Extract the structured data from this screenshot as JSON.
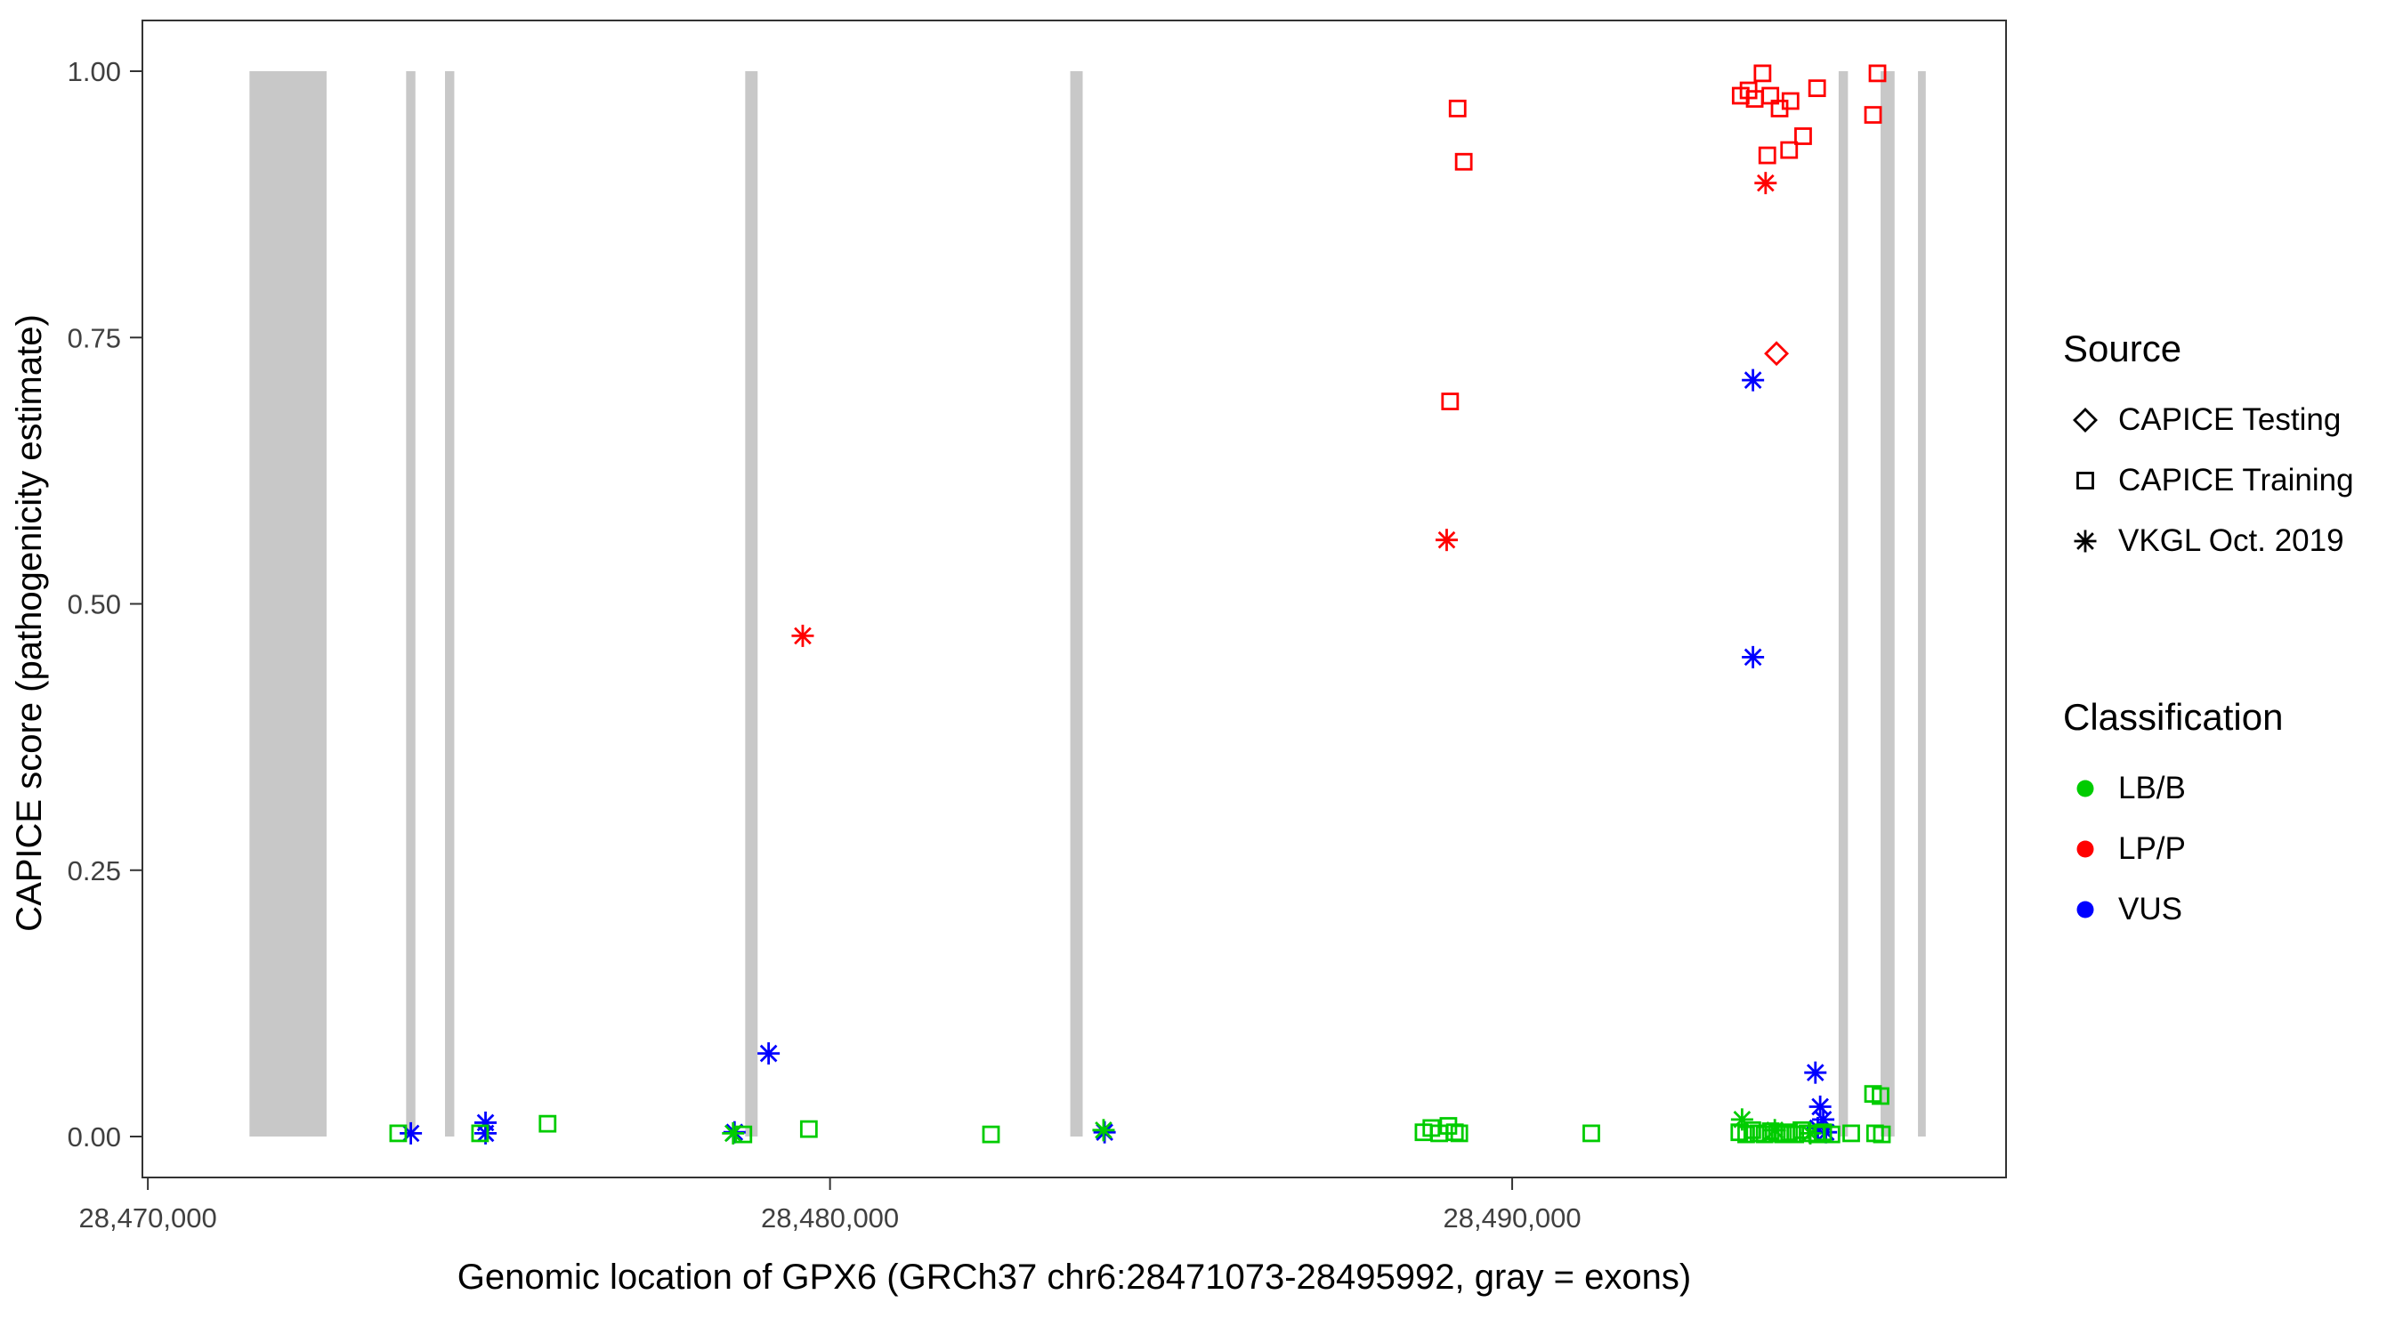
{
  "axes": {
    "y_label": "CAPICE score (pathogenicity estimate)",
    "x_label": "Genomic location of GPX6 (GRCh37 chr6:28471073-28495992, gray = exons)",
    "x_ticks": [
      "28,470,000",
      "28,480,000",
      "28,490,000"
    ],
    "y_ticks": [
      "0.00",
      "0.25",
      "0.50",
      "0.75",
      "1.00"
    ]
  },
  "legend": {
    "source_title": "Source",
    "source_items": [
      {
        "label": "CAPICE Testing",
        "symbol": "diamond"
      },
      {
        "label": "CAPICE Training",
        "symbol": "square"
      },
      {
        "label": "VKGL Oct. 2019",
        "symbol": "asterisk"
      }
    ],
    "classification_title": "Classification",
    "classification_items": [
      {
        "label": "LB/B",
        "color": "#00CC00"
      },
      {
        "label": "LP/P",
        "color": "#FF0000"
      },
      {
        "label": "VUS",
        "color": "#0000FF"
      }
    ]
  },
  "chart_data": {
    "type": "scatter",
    "title": "",
    "xlabel": "Genomic location of GPX6 (GRCh37 chr6:28471073-28495992, gray = exons)",
    "ylabel": "CAPICE score (pathogenicity estimate)",
    "x_domain": [
      28469920,
      28497240
    ],
    "y_domain": [
      0,
      1
    ],
    "x_tick_values": [
      28470000,
      28480000,
      28490000
    ],
    "y_tick_values": [
      0,
      0.25,
      0.5,
      0.75,
      1
    ],
    "grid": "off",
    "legend_position": "right",
    "exon_color": "#C8C8C8",
    "exons": [
      [
        28471490,
        28472620
      ],
      [
        28473786,
        28473922
      ],
      [
        28474356,
        28474492
      ],
      [
        28478757,
        28478939
      ],
      [
        28483522,
        28483704
      ],
      [
        28494786,
        28494922
      ],
      [
        28495401,
        28495606
      ],
      [
        28495949,
        28496063
      ]
    ],
    "series": [
      {
        "name": "CAPICE Training / LP/P",
        "source": "CAPICE Training",
        "classification": "LP/P",
        "symbol": "square",
        "color": "#FF0000",
        "points": [
          [
            28489200,
            0.965
          ],
          [
            28489290,
            0.915
          ],
          [
            28489090,
            0.69
          ],
          [
            28493350,
            0.977
          ],
          [
            28493465,
            0.982
          ],
          [
            28493555,
            0.974
          ],
          [
            28493670,
            0.998
          ],
          [
            28493785,
            0.977
          ],
          [
            28493740,
            0.921
          ],
          [
            28493920,
            0.965
          ],
          [
            28494060,
            0.926
          ],
          [
            28494080,
            0.972
          ],
          [
            28494265,
            0.939
          ],
          [
            28494470,
            0.984
          ],
          [
            28495355,
            0.998
          ],
          [
            28495290,
            0.959
          ]
        ]
      },
      {
        "name": "CAPICE Testing / LP/P",
        "source": "CAPICE Testing",
        "classification": "LP/P",
        "symbol": "diamond",
        "color": "#FF0000",
        "points": [
          [
            28493875,
            0.735
          ]
        ]
      },
      {
        "name": "VKGL Oct. 2019 / LP/P",
        "source": "VKGL Oct. 2019",
        "classification": "LP/P",
        "symbol": "asterisk",
        "color": "#FF0000",
        "points": [
          [
            28479600,
            0.47
          ],
          [
            28489040,
            0.56
          ],
          [
            28493715,
            0.895
          ]
        ]
      },
      {
        "name": "VKGL Oct. 2019 / VUS",
        "source": "VKGL Oct. 2019",
        "classification": "VUS",
        "symbol": "asterisk",
        "color": "#0000FF",
        "points": [
          [
            28493530,
            0.71
          ],
          [
            28493530,
            0.45
          ],
          [
            28479100,
            0.078
          ],
          [
            28494445,
            0.06
          ],
          [
            28494515,
            0.028
          ],
          [
            28494560,
            0.016
          ],
          [
            28494480,
            0.008
          ],
          [
            28494600,
            0.004
          ],
          [
            28473855,
            0.003
          ],
          [
            28474950,
            0.013
          ],
          [
            28474950,
            0.003
          ],
          [
            28478600,
            0.004
          ],
          [
            28484025,
            0.004
          ]
        ]
      },
      {
        "name": "VKGL Oct. 2019 / LB/B",
        "source": "VKGL Oct. 2019",
        "classification": "LB/B",
        "symbol": "asterisk",
        "color": "#00CC00",
        "points": [
          [
            28478580,
            0.003
          ],
          [
            28484010,
            0.006
          ],
          [
            28493370,
            0.016
          ],
          [
            28493850,
            0.006
          ],
          [
            28494370,
            0.003
          ]
        ]
      },
      {
        "name": "CAPICE Training / LB/B",
        "source": "CAPICE Training",
        "classification": "LB/B",
        "symbol": "square",
        "color": "#00CC00",
        "points": [
          [
            28473670,
            0.003
          ],
          [
            28474870,
            0.003
          ],
          [
            28475860,
            0.012
          ],
          [
            28478730,
            0.002
          ],
          [
            28479690,
            0.007
          ],
          [
            28482360,
            0.002
          ],
          [
            28488700,
            0.004
          ],
          [
            28488815,
            0.008
          ],
          [
            28488930,
            0.003
          ],
          [
            28489065,
            0.01
          ],
          [
            28489160,
            0.004
          ],
          [
            28489225,
            0.003
          ],
          [
            28491160,
            0.003
          ],
          [
            28493330,
            0.004
          ],
          [
            28493430,
            0.002
          ],
          [
            28493520,
            0.006
          ],
          [
            28493610,
            0.003
          ],
          [
            28493700,
            0.002
          ],
          [
            28493790,
            0.005
          ],
          [
            28493880,
            0.003
          ],
          [
            28493970,
            0.002
          ],
          [
            28494060,
            0.004
          ],
          [
            28494150,
            0.002
          ],
          [
            28494240,
            0.006
          ],
          [
            28494330,
            0.003
          ],
          [
            28494470,
            0.002
          ],
          [
            28494560,
            0.004
          ],
          [
            28494680,
            0.002
          ],
          [
            28494970,
            0.003
          ],
          [
            28495290,
            0.04
          ],
          [
            28495400,
            0.038
          ],
          [
            28495320,
            0.003
          ],
          [
            28495420,
            0.002
          ]
        ]
      }
    ]
  }
}
